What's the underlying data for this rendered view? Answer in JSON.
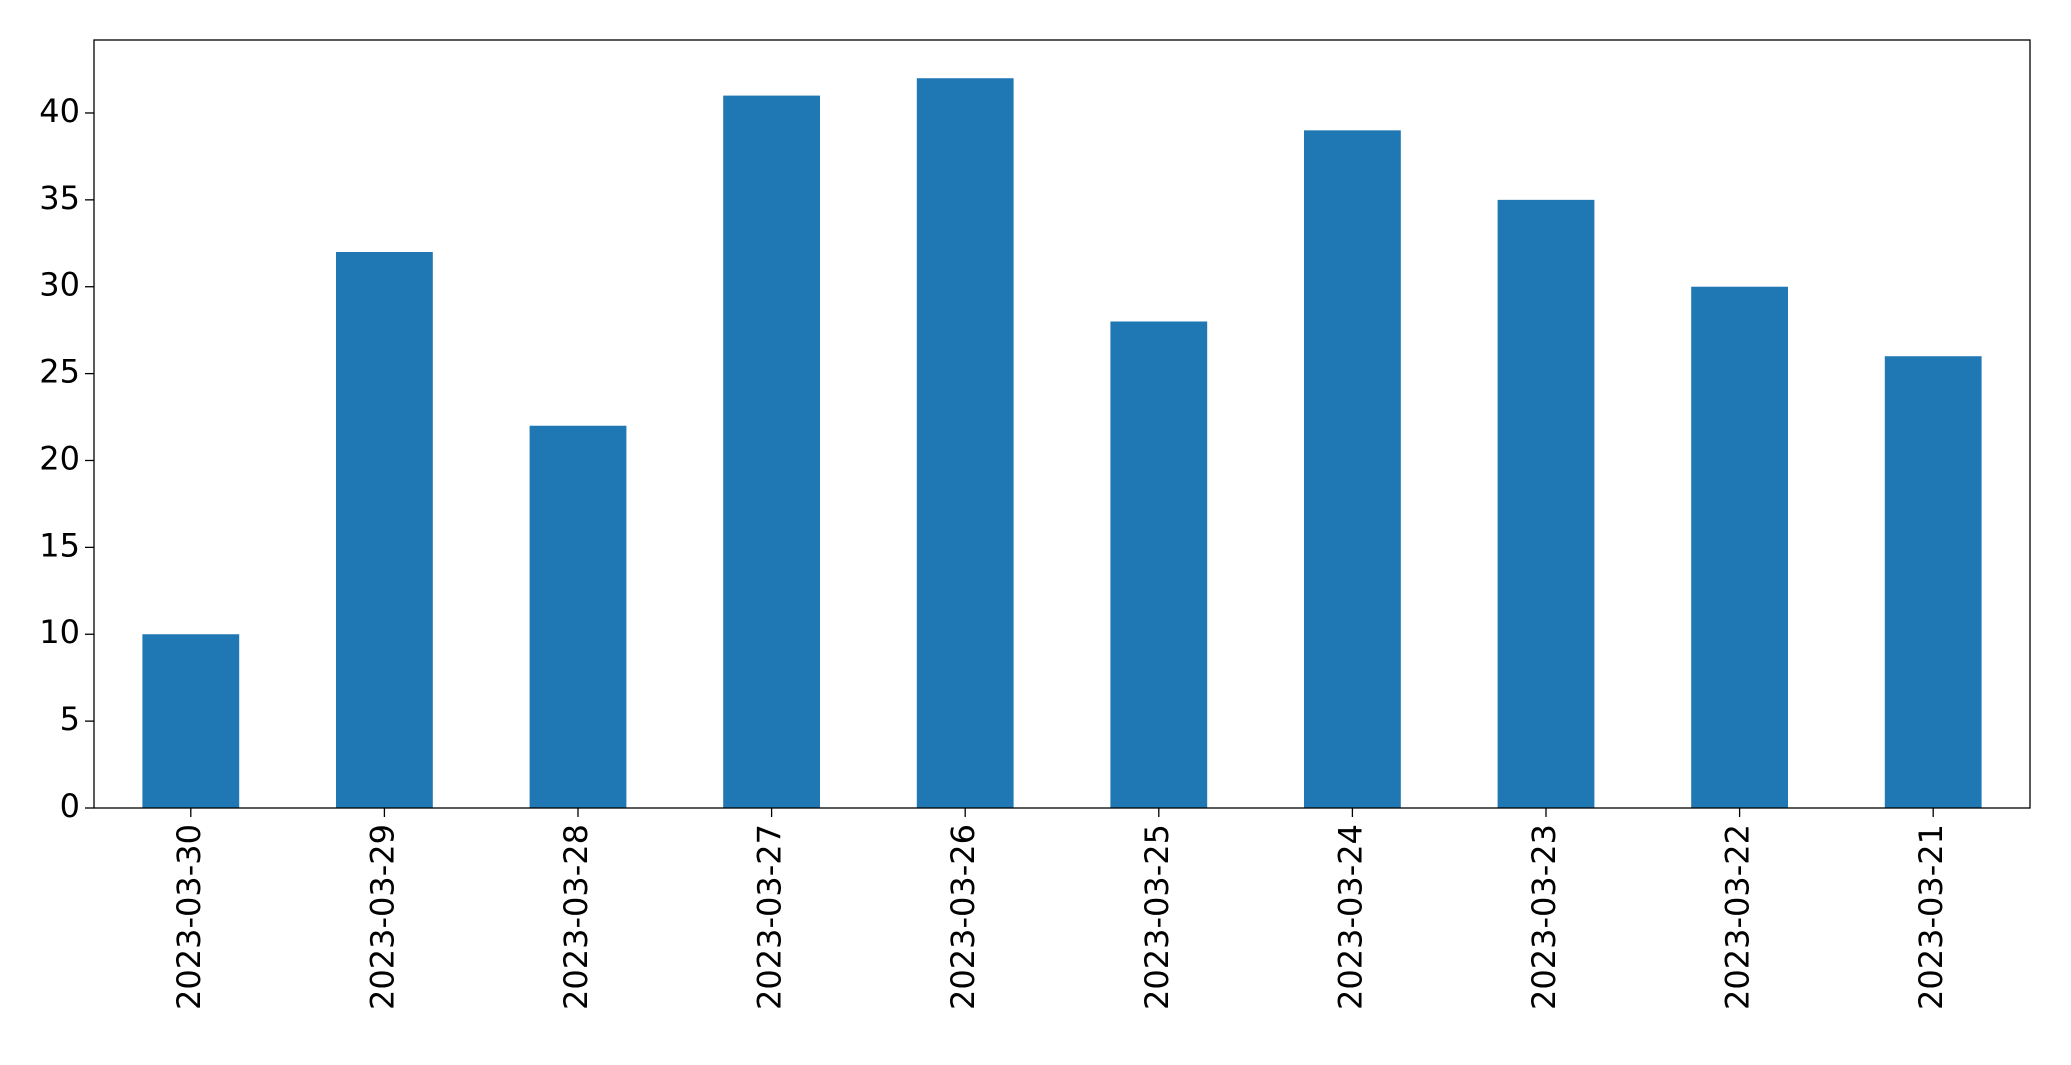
{
  "chart_data": {
    "type": "bar",
    "categories": [
      "2023-03-30",
      "2023-03-29",
      "2023-03-28",
      "2023-03-27",
      "2023-03-26",
      "2023-03-25",
      "2023-03-24",
      "2023-03-23",
      "2023-03-22",
      "2023-03-21"
    ],
    "values": [
      10,
      32,
      22,
      41,
      42,
      28,
      39,
      35,
      30,
      26
    ],
    "color": "#1f77b4",
    "ylim": [
      0,
      44.2
    ],
    "yticks": [
      0,
      5,
      10,
      15,
      20,
      25,
      30,
      35,
      40
    ],
    "grid": false
  }
}
